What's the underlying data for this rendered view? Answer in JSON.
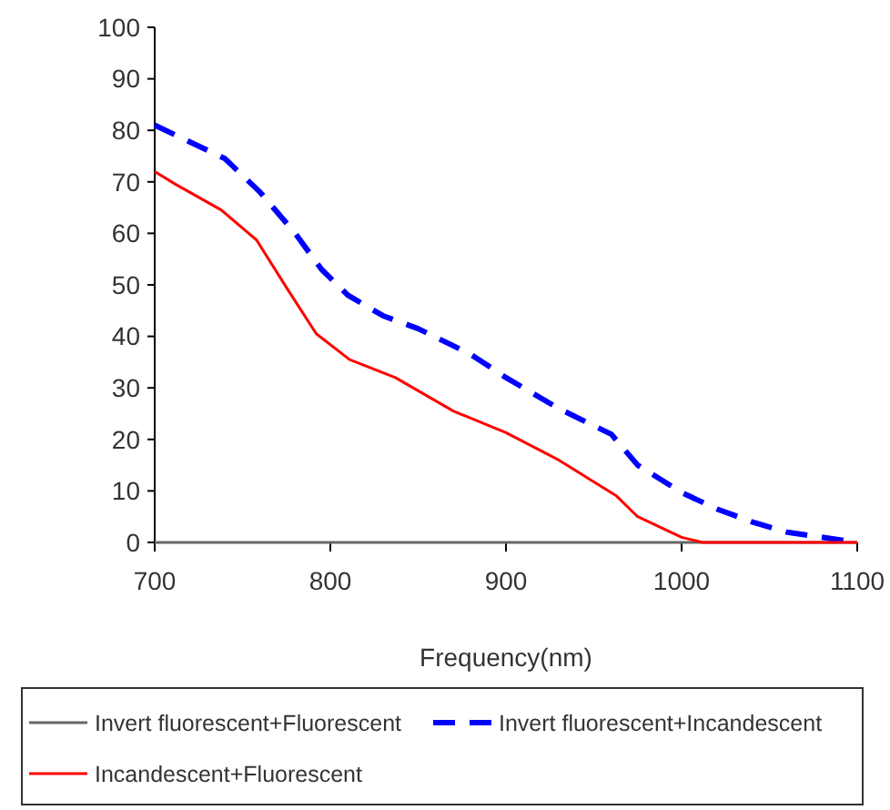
{
  "chart_data": {
    "type": "line",
    "xlabel": "Frequency(nm)",
    "xlim": [
      700,
      1100
    ],
    "xticks": [
      700,
      800,
      900,
      1000,
      1100
    ],
    "ylim": [
      0,
      100
    ],
    "yticks": [
      0,
      10,
      20,
      30,
      40,
      50,
      60,
      70,
      80,
      90,
      100
    ],
    "grid": false,
    "legend": "bottom",
    "series": [
      {
        "name": "Invert fluorescent+Fluorescent",
        "color": "#666666",
        "line_style": "solid",
        "x": [
          700,
          1100
        ],
        "values": [
          0,
          0
        ]
      },
      {
        "name": "Invert fluorescent+Incandescent",
        "color": "#0000ff",
        "line_style": "dashed",
        "x": [
          700,
          740,
          760,
          780,
          795,
          810,
          830,
          850,
          880,
          900,
          930,
          960,
          975,
          1000,
          1020,
          1040,
          1060,
          1100
        ],
        "values": [
          81,
          74.5,
          68,
          60,
          53,
          48,
          44,
          41.5,
          36.5,
          32,
          26,
          21,
          15,
          9.7,
          6.5,
          4,
          2,
          0
        ]
      },
      {
        "name": "Incandescent+Fluorescent",
        "color": "#ff0000",
        "line_style": "solid",
        "x": [
          700,
          712,
          738,
          758,
          775,
          792,
          811,
          837,
          870,
          900,
          930,
          963,
          975,
          1000,
          1012,
          1100
        ],
        "values": [
          72,
          69.5,
          64.5,
          58.7,
          49.5,
          40.5,
          35.5,
          32,
          25.5,
          21.3,
          16,
          9,
          5,
          1,
          0,
          0
        ]
      }
    ]
  }
}
